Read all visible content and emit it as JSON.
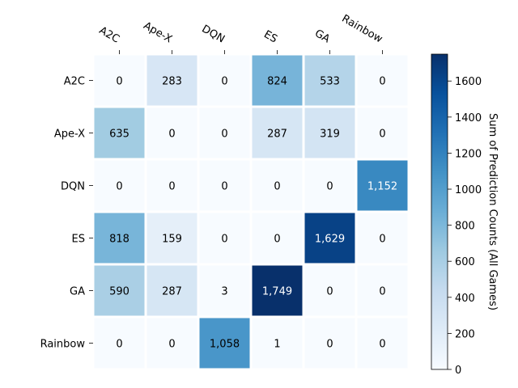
{
  "chart_data": {
    "type": "heatmap",
    "x_categories": [
      "A2C",
      "Ape-X",
      "DQN",
      "ES",
      "GA",
      "Rainbow"
    ],
    "y_categories": [
      "A2C",
      "Ape-X",
      "DQN",
      "ES",
      "GA",
      "Rainbow"
    ],
    "values": [
      [
        0,
        283,
        0,
        824,
        533,
        0
      ],
      [
        635,
        0,
        0,
        287,
        319,
        0
      ],
      [
        0,
        0,
        0,
        0,
        0,
        1152
      ],
      [
        818,
        159,
        0,
        0,
        1629,
        0
      ],
      [
        590,
        287,
        3,
        1749,
        0,
        0
      ],
      [
        0,
        0,
        1058,
        1,
        0,
        0
      ]
    ],
    "value_labels": [
      [
        "0",
        "283",
        "0",
        "824",
        "533",
        "0"
      ],
      [
        "635",
        "0",
        "0",
        "287",
        "319",
        "0"
      ],
      [
        "0",
        "0",
        "0",
        "0",
        "0",
        "1,152"
      ],
      [
        "818",
        "159",
        "0",
        "0",
        "1,629",
        "0"
      ],
      [
        "590",
        "287",
        "3",
        "1,749",
        "0",
        "0"
      ],
      [
        "0",
        "0",
        "1,058",
        "1",
        "0",
        "0"
      ]
    ],
    "colormap": "Blues",
    "colorbar": {
      "label": "Sum of Prediction Counts (All Games)",
      "range": [
        0,
        1749
      ],
      "ticks": [
        0,
        200,
        400,
        600,
        800,
        1000,
        1200,
        1400,
        1600
      ]
    },
    "x_tick_position": "top",
    "x_tick_rotation": -30,
    "grid": false
  }
}
